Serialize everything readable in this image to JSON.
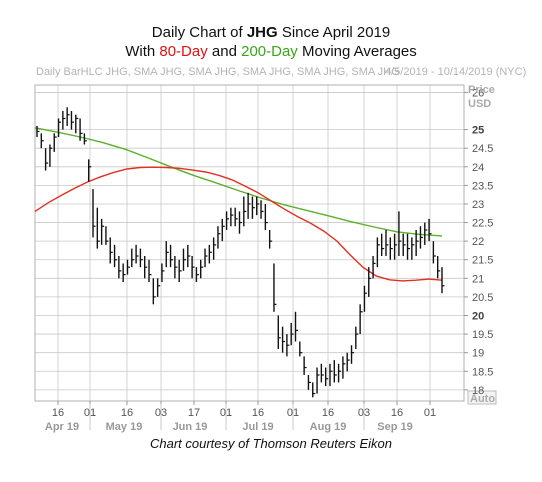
{
  "header": {
    "title_line1_prefix": "Daily Chart of ",
    "ticker": "JHG",
    "title_line1_suffix": " Since April 2019",
    "title_line2_prefix": "With ",
    "ma_short": "80-Day",
    "title_line2_middle": " and ",
    "ma_long": "200-Day",
    "title_line2_suffix": " Moving Averages",
    "legend_left": "Daily BarHLC JHG, SMA JHG, SMA JHG, SMA JHG, SMA JHG, SMA JHG",
    "legend_right": "4/5/2019 - 10/14/2019 (NYC)"
  },
  "credit": "Chart courtesy of Thomson Reuters Eikon",
  "colors": {
    "ma80": "#e03020",
    "ma200": "#5ab02a",
    "bars": "#111111",
    "grid": "#c8c8c8"
  },
  "chart_data": {
    "type": "line",
    "title": "Daily Chart of JHG Since April 2019",
    "subtitle": "With 80-Day and 200-Day Moving Averages",
    "ylabel": "Price USD",
    "y_label_lines": [
      "Price",
      "USD"
    ],
    "ylim": [
      17.7,
      26.2
    ],
    "y_ticks": [
      "26",
      "25",
      "24.5",
      "24",
      "23.5",
      "23",
      "22.5",
      "22",
      "21.5",
      "21",
      "20.5",
      "20",
      "19.5",
      "19",
      "18.5",
      "18"
    ],
    "y_ticks_major": [
      "25",
      "20"
    ],
    "auto_label": "Auto",
    "x_day_labels": [
      "16",
      "01",
      "16",
      "03",
      "17",
      "01",
      "16",
      "01",
      "16",
      "03",
      "16",
      "01"
    ],
    "x_month_labels": [
      "Apr 19",
      "May 19",
      "Jun 19",
      "Jul 19",
      "Aug 19",
      "Sep 19"
    ],
    "ohlc": [
      [
        25.1,
        24.8,
        24.95
      ],
      [
        24.9,
        24.5,
        24.7
      ],
      [
        24.5,
        23.9,
        24.1
      ],
      [
        24.6,
        24.0,
        24.5
      ],
      [
        24.9,
        24.4,
        24.8
      ],
      [
        25.3,
        24.8,
        25.2
      ],
      [
        25.5,
        25.0,
        25.3
      ],
      [
        25.6,
        25.1,
        25.4
      ],
      [
        25.5,
        25.0,
        25.2
      ],
      [
        25.4,
        24.9,
        25.3
      ],
      [
        25.3,
        24.7,
        24.9
      ],
      [
        24.9,
        24.6,
        24.7
      ],
      [
        24.2,
        23.6,
        24.0
      ],
      [
        23.4,
        22.1,
        22.4
      ],
      [
        22.9,
        21.8,
        22.0
      ],
      [
        22.6,
        21.9,
        22.4
      ],
      [
        22.4,
        21.9,
        22.0
      ],
      [
        22.1,
        21.4,
        21.7
      ],
      [
        21.9,
        21.3,
        21.5
      ],
      [
        21.6,
        21.0,
        21.2
      ],
      [
        21.4,
        20.9,
        21.1
      ],
      [
        21.5,
        21.1,
        21.3
      ],
      [
        21.8,
        21.3,
        21.5
      ],
      [
        21.9,
        21.4,
        21.6
      ],
      [
        21.8,
        21.3,
        21.5
      ],
      [
        21.6,
        21.0,
        21.3
      ],
      [
        21.5,
        20.9,
        21.1
      ],
      [
        21.0,
        20.3,
        20.5
      ],
      [
        21.0,
        20.5,
        20.8
      ],
      [
        21.4,
        20.9,
        21.2
      ],
      [
        22.0,
        21.3,
        21.7
      ],
      [
        21.9,
        21.3,
        21.5
      ],
      [
        21.6,
        21.0,
        21.3
      ],
      [
        21.5,
        20.9,
        21.2
      ],
      [
        21.8,
        21.2,
        21.5
      ],
      [
        21.9,
        21.3,
        21.6
      ],
      [
        21.6,
        21.0,
        21.3
      ],
      [
        21.3,
        20.9,
        21.1
      ],
      [
        21.5,
        21.0,
        21.3
      ],
      [
        21.8,
        21.3,
        21.6
      ],
      [
        21.9,
        21.4,
        21.7
      ],
      [
        22.1,
        21.5,
        21.9
      ],
      [
        22.4,
        21.8,
        22.2
      ],
      [
        22.6,
        22.0,
        22.4
      ],
      [
        22.8,
        22.3,
        22.6
      ],
      [
        22.9,
        22.4,
        22.7
      ],
      [
        22.9,
        22.4,
        22.6
      ],
      [
        22.8,
        22.2,
        22.5
      ],
      [
        23.2,
        22.4,
        22.8
      ],
      [
        23.3,
        22.6,
        23.0
      ],
      [
        23.2,
        22.6,
        22.9
      ],
      [
        23.2,
        22.7,
        23.0
      ],
      [
        23.1,
        22.6,
        22.8
      ],
      [
        23.0,
        22.3,
        22.5
      ],
      [
        22.3,
        21.8,
        22.0
      ],
      [
        21.4,
        20.1,
        20.3
      ],
      [
        20.0,
        19.1,
        19.4
      ],
      [
        19.7,
        19.0,
        19.3
      ],
      [
        19.5,
        18.9,
        19.2
      ],
      [
        19.8,
        19.2,
        19.5
      ],
      [
        20.1,
        19.3,
        19.6
      ],
      [
        19.3,
        18.9,
        19.0
      ],
      [
        18.9,
        18.4,
        18.6
      ],
      [
        18.4,
        18.0,
        18.2
      ],
      [
        18.2,
        17.8,
        17.9
      ],
      [
        18.6,
        17.9,
        18.4
      ],
      [
        18.7,
        18.2,
        18.4
      ],
      [
        18.6,
        18.1,
        18.3
      ],
      [
        18.7,
        18.1,
        18.5
      ],
      [
        18.8,
        18.2,
        18.4
      ],
      [
        18.7,
        18.2,
        18.5
      ],
      [
        18.9,
        18.3,
        18.7
      ],
      [
        19.0,
        18.5,
        18.8
      ],
      [
        19.2,
        18.7,
        19.0
      ],
      [
        19.7,
        19.1,
        19.5
      ],
      [
        20.3,
        19.5,
        20.1
      ],
      [
        20.8,
        20.1,
        20.6
      ],
      [
        21.3,
        20.5,
        21.0
      ],
      [
        21.6,
        21.0,
        21.4
      ],
      [
        22.1,
        21.3,
        21.9
      ],
      [
        22.2,
        21.6,
        21.8
      ],
      [
        22.3,
        21.6,
        21.9
      ],
      [
        22.1,
        21.5,
        21.8
      ],
      [
        22.2,
        21.5,
        21.9
      ],
      [
        22.8,
        21.6,
        22.0
      ],
      [
        22.2,
        21.6,
        21.9
      ],
      [
        22.2,
        21.5,
        21.8
      ],
      [
        22.1,
        21.5,
        21.9
      ],
      [
        22.3,
        21.6,
        22.0
      ],
      [
        22.4,
        21.8,
        22.1
      ],
      [
        22.5,
        21.9,
        22.3
      ],
      [
        22.6,
        22.0,
        22.2
      ],
      [
        22.0,
        21.4,
        21.6
      ],
      [
        21.6,
        21.0,
        21.2
      ],
      [
        21.3,
        20.6,
        20.8
      ]
    ],
    "series": [
      {
        "name": "80-Day",
        "values": [
          22.8,
          23.03,
          23.23,
          23.42,
          23.59,
          23.73,
          23.85,
          23.94,
          23.98,
          23.99,
          23.98,
          23.96,
          23.91,
          23.86,
          23.77,
          23.65,
          23.48,
          23.3,
          23.08,
          22.86,
          22.66,
          22.48,
          22.27,
          22.0,
          21.63,
          21.29,
          21.06,
          20.96,
          20.93,
          20.95,
          20.98,
          20.95
        ]
      },
      {
        "name": "200-Day",
        "values": [
          25.05,
          24.93,
          24.8,
          24.65,
          24.47,
          24.24,
          24.0,
          23.77,
          23.57,
          23.36,
          23.16,
          22.98,
          22.83,
          22.68,
          22.52,
          22.38,
          22.25,
          22.18,
          22.14
        ]
      }
    ]
  }
}
